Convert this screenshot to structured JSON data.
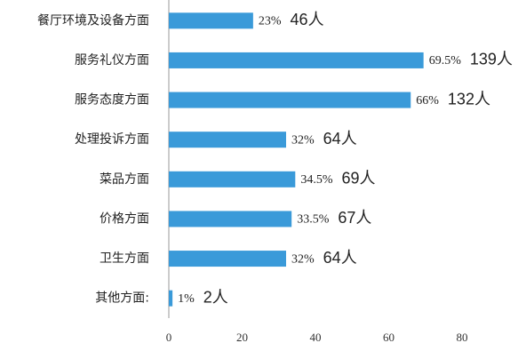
{
  "chart_data": {
    "type": "bar",
    "orientation": "horizontal",
    "categories": [
      "餐厅环境及设备方面",
      "服务礼仪方面",
      "服务态度方面",
      "处理投诉方面",
      "菜品方面",
      "价格方面",
      "卫生方面",
      "其他方面:"
    ],
    "values": [
      23,
      69.5,
      66,
      32,
      34.5,
      33.5,
      32,
      1
    ],
    "value_labels": [
      "23%",
      "69.5%",
      "66%",
      "32%",
      "34.5%",
      "33.5%",
      "32%",
      "1%"
    ],
    "count_labels": [
      "46人",
      "139人",
      "132人",
      "64人",
      "69人",
      "67人",
      "64人",
      "2人"
    ],
    "color": "#3a9ad9",
    "xlim": [
      0,
      80
    ],
    "xticks": [
      0,
      20,
      40,
      60,
      80
    ]
  }
}
